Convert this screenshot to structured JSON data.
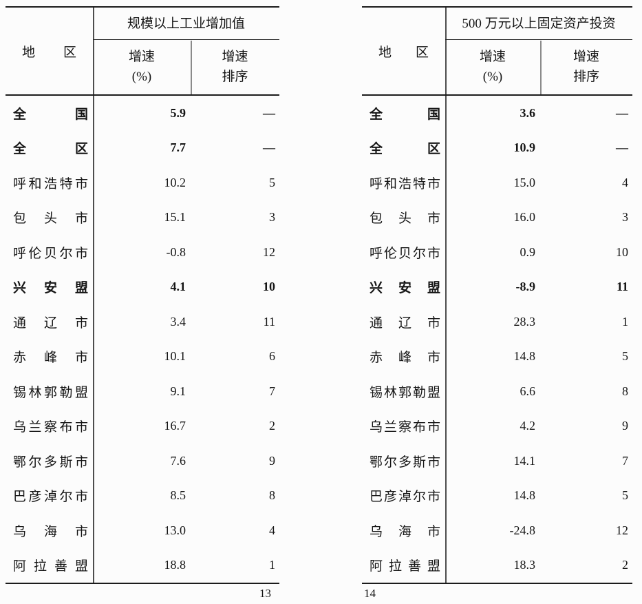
{
  "document": {
    "page_background": "#fcfcfc",
    "text_color": "#151515",
    "rule_color": "#1b1b1b",
    "column_divider_color": "#4d4d4d",
    "header_divider_color": "#8a8a8a"
  },
  "tables": [
    {
      "name": "industrial-added-value",
      "span_header": "规模以上工业增加值",
      "region_header": "地区",
      "growth_header": [
        "增速",
        "(%)"
      ],
      "rank_header": [
        "增速",
        "排序"
      ],
      "page_number": "13",
      "rows": [
        {
          "region": "全国",
          "growth": "5.9",
          "rank": "—",
          "bold": true
        },
        {
          "region": "全区",
          "growth": "7.7",
          "rank": "—",
          "bold": true
        },
        {
          "region": "呼和浩特市",
          "growth": "10.2",
          "rank": "5",
          "bold": false
        },
        {
          "region": "包头市",
          "growth": "15.1",
          "rank": "3",
          "bold": false
        },
        {
          "region": "呼伦贝尔市",
          "growth": "-0.8",
          "rank": "12",
          "bold": false
        },
        {
          "region": "兴安盟",
          "growth": "4.1",
          "rank": "10",
          "bold": true
        },
        {
          "region": "通辽市",
          "growth": "3.4",
          "rank": "11",
          "bold": false
        },
        {
          "region": "赤峰市",
          "growth": "10.1",
          "rank": "6",
          "bold": false
        },
        {
          "region": "锡林郭勒盟",
          "growth": "9.1",
          "rank": "7",
          "bold": false
        },
        {
          "region": "乌兰察布市",
          "growth": "16.7",
          "rank": "2",
          "bold": false
        },
        {
          "region": "鄂尔多斯市",
          "growth": "7.6",
          "rank": "9",
          "bold": false
        },
        {
          "region": "巴彦淖尔市",
          "growth": "8.5",
          "rank": "8",
          "bold": false
        },
        {
          "region": "乌海市",
          "growth": "13.0",
          "rank": "4",
          "bold": false
        },
        {
          "region": "阿拉善盟",
          "growth": "18.8",
          "rank": "1",
          "bold": false
        }
      ]
    },
    {
      "name": "fixed-asset-investment",
      "span_header": "500 万元以上固定资产投资",
      "region_header": "地区",
      "growth_header": [
        "增速",
        "(%)"
      ],
      "rank_header": [
        "增速",
        "排序"
      ],
      "page_number": "14",
      "rows": [
        {
          "region": "全国",
          "growth": "3.6",
          "rank": "—",
          "bold": true
        },
        {
          "region": "全区",
          "growth": "10.9",
          "rank": "—",
          "bold": true
        },
        {
          "region": "呼和浩特市",
          "growth": "15.0",
          "rank": "4",
          "bold": false
        },
        {
          "region": "包头市",
          "growth": "16.0",
          "rank": "3",
          "bold": false
        },
        {
          "region": "呼伦贝尔市",
          "growth": "0.9",
          "rank": "10",
          "bold": false
        },
        {
          "region": "兴安盟",
          "growth": "-8.9",
          "rank": "11",
          "bold": true
        },
        {
          "region": "通辽市",
          "growth": "28.3",
          "rank": "1",
          "bold": false
        },
        {
          "region": "赤峰市",
          "growth": "14.8",
          "rank": "5",
          "bold": false
        },
        {
          "region": "锡林郭勒盟",
          "growth": "6.6",
          "rank": "8",
          "bold": false
        },
        {
          "region": "乌兰察布市",
          "growth": "4.2",
          "rank": "9",
          "bold": false
        },
        {
          "region": "鄂尔多斯市",
          "growth": "14.1",
          "rank": "7",
          "bold": false
        },
        {
          "region": "巴彦淖尔市",
          "growth": "14.8",
          "rank": "5",
          "bold": false
        },
        {
          "region": "乌海市",
          "growth": "-24.8",
          "rank": "12",
          "bold": false
        },
        {
          "region": "阿拉善盟",
          "growth": "18.3",
          "rank": "2",
          "bold": false
        }
      ]
    }
  ]
}
